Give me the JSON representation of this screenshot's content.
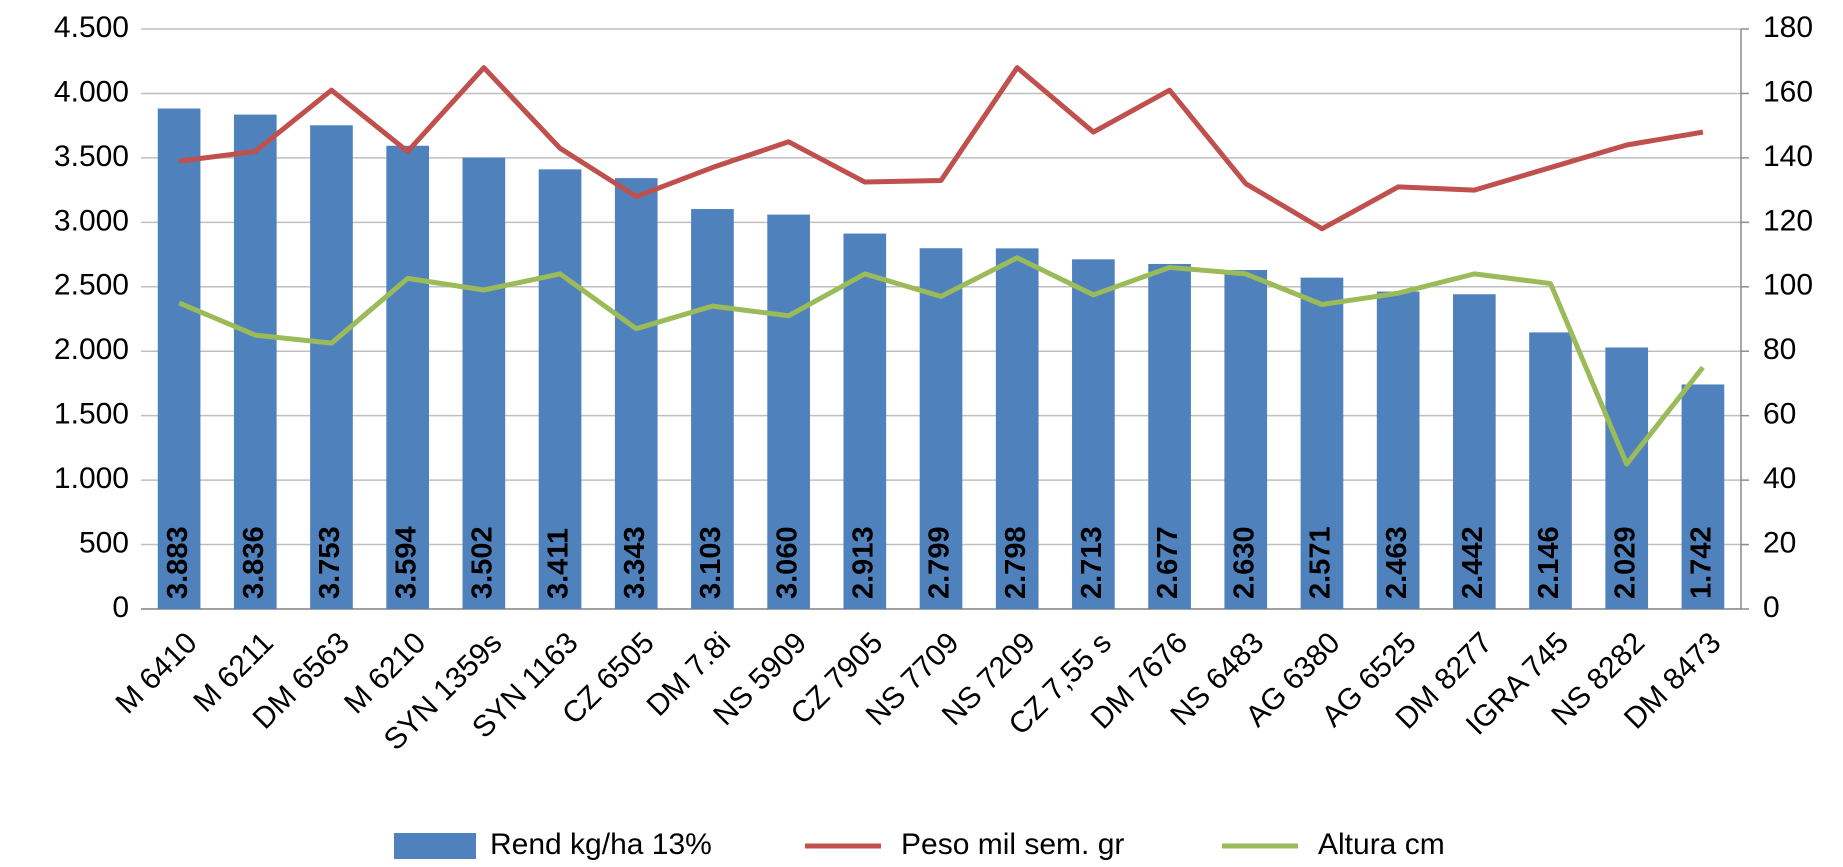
{
  "chart_data": {
    "type": "bar",
    "categories": [
      "M 6410",
      "M 6211",
      "DM 6563",
      "M 6210",
      "SYN 1359s",
      "SYN 1163",
      "CZ 6505",
      "DM 7.8i",
      "NS 5909",
      "CZ 7905",
      "NS 7709",
      "NS 7209",
      "CZ 7,55 s",
      "DM 7676",
      "NS 6483",
      "AG 6380",
      "AG 6525",
      "DM 8277",
      "IGRA 745",
      "NS 8282",
      "DM 8473"
    ],
    "series": [
      {
        "name": "Rend kg/ha 13%",
        "type": "bar",
        "color": "#4f81bd",
        "values": [
          3883,
          3836,
          3753,
          3594,
          3502,
          3411,
          3343,
          3103,
          3060,
          2913,
          2799,
          2798,
          2713,
          2677,
          2630,
          2571,
          2463,
          2442,
          2146,
          2029,
          1742
        ],
        "value_labels": [
          "3.883",
          "3.836",
          "3.753",
          "3.594",
          "3.502",
          "3.411",
          "3.343",
          "3.103",
          "3.060",
          "2.913",
          "2.799",
          "2.798",
          "2.713",
          "2.677",
          "2.630",
          "2.571",
          "2.463",
          "2.442",
          "2.146",
          "2.029",
          "1.742"
        ]
      },
      {
        "name": "Peso mil sem. gr",
        "type": "line",
        "axis": "y2",
        "color": "#c0504d",
        "values": [
          139,
          142,
          161,
          142,
          168,
          143,
          128,
          137,
          145,
          132.5,
          133,
          168,
          148,
          161,
          132,
          118,
          131,
          130,
          137,
          144,
          148
        ]
      },
      {
        "name": "Altura cm",
        "type": "line",
        "axis": "y2",
        "color": "#9bbb59",
        "values": [
          95,
          85,
          82.5,
          102.6,
          99,
          104,
          87,
          94,
          91,
          104,
          97,
          109,
          97.5,
          106,
          104,
          94.5,
          98,
          104,
          101,
          45,
          75
        ]
      }
    ],
    "ylim": [
      0,
      4500
    ],
    "yticks": [
      0,
      500,
      {
        "value": 1000,
        "label": "1.000"
      },
      {
        "value": 1500,
        "label": "1.500"
      },
      {
        "value": 2000,
        "label": "2.000"
      },
      {
        "value": 2500,
        "label": "2.500"
      },
      {
        "value": 3000,
        "label": "3.000"
      },
      {
        "value": 3500,
        "label": "3.500"
      },
      {
        "value": 4000,
        "label": "4.000"
      },
      {
        "value": 4500,
        "label": "4.500"
      }
    ],
    "y2lim": [
      0,
      180
    ],
    "y2ticks": [
      0,
      20,
      40,
      60,
      80,
      100,
      120,
      140,
      160,
      180
    ],
    "grid": true,
    "legend": "bottom"
  }
}
